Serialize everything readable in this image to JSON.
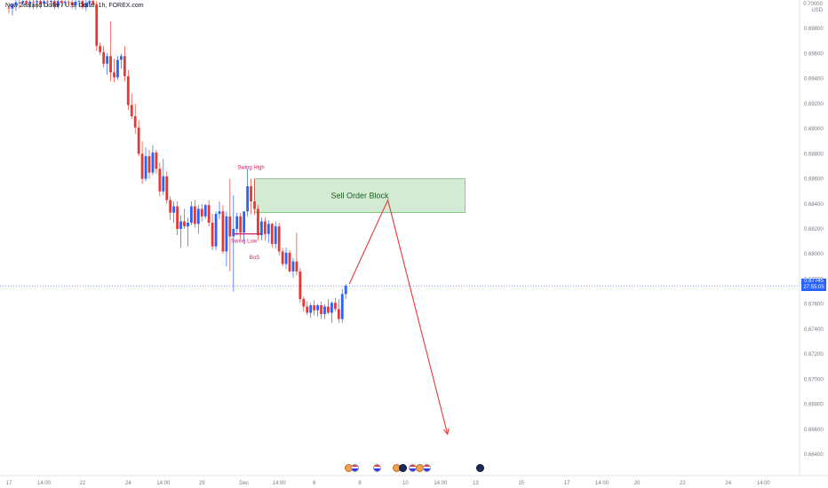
{
  "header": {
    "symbol_text": "New Zealand Dollar / U.S. Dollar, 1h, FOREX.com",
    "currency": "USD",
    "top_label": "0.70000"
  },
  "price_badge": {
    "price": "0.67745",
    "countdown": "27:55:05"
  },
  "colors": {
    "up": "#2962ff",
    "down": "#e53935",
    "arrow": "#e53935",
    "order_block_fill": "#c8e6c9",
    "order_block_stroke": "#4caf50",
    "annotation": "#d81b60",
    "axis_text": "#787b86"
  },
  "chart_data": {
    "type": "candlestick",
    "ylim": [
      0.664,
      0.7
    ],
    "y_ticks": [
      "0.69800",
      "0.69600",
      "0.69400",
      "0.69200",
      "0.69000",
      "0.68800",
      "0.68600",
      "0.68400",
      "0.68200",
      "0.68000",
      "0.67800",
      "0.67600",
      "0.67400",
      "0.67200",
      "0.67000",
      "0.66800",
      "0.66600",
      "0.66400"
    ],
    "x_ticks": [
      {
        "label": "17",
        "i": 0
      },
      {
        "label": "14:00",
        "i": 10
      },
      {
        "label": "22",
        "i": 21
      },
      {
        "label": "24",
        "i": 34
      },
      {
        "label": "14:00",
        "i": 44
      },
      {
        "label": "29",
        "i": 55
      },
      {
        "label": "Dec",
        "i": 67
      },
      {
        "label": "14:00",
        "i": 77
      },
      {
        "label": "6",
        "i": 87
      },
      {
        "label": "8",
        "i": 100
      },
      {
        "label": "10",
        "i": 113
      },
      {
        "label": "14:00",
        "i": 123
      },
      {
        "label": "13",
        "i": 133
      },
      {
        "label": "15",
        "i": 146
      },
      {
        "label": "17",
        "i": 159
      },
      {
        "label": "14:00",
        "i": 169
      },
      {
        "label": "20",
        "i": 179
      },
      {
        "label": "22",
        "i": 192
      },
      {
        "label": "24",
        "i": 205
      },
      {
        "label": "14:00",
        "i": 215
      }
    ],
    "candles": [
      [
        0.69968,
        0.69988,
        0.69922,
        0.6996
      ],
      [
        0.6996,
        0.70004,
        0.69905,
        0.6999
      ],
      [
        0.6999,
        0.7003,
        0.6994,
        0.7001
      ],
      [
        0.7001,
        0.7003,
        0.6996,
        0.70005
      ],
      [
        0.70005,
        0.7003,
        0.6998,
        0.7002
      ],
      [
        0.7002,
        0.7003,
        0.69975,
        0.7
      ],
      [
        0.7,
        0.7003,
        0.69965,
        0.70015
      ],
      [
        0.70015,
        0.7003,
        0.69955,
        0.7001
      ],
      [
        0.7001,
        0.7003,
        0.6996,
        0.7002
      ],
      [
        0.7002,
        0.7003,
        0.69965,
        0.7
      ],
      [
        0.7,
        0.7003,
        0.69975,
        0.70018
      ],
      [
        0.70018,
        0.7003,
        0.6997,
        0.70012
      ],
      [
        0.70012,
        0.7003,
        0.6997,
        0.7002
      ],
      [
        0.7002,
        0.7003,
        0.69955,
        0.6998
      ],
      [
        0.6998,
        0.7003,
        0.6996,
        0.7002
      ],
      [
        0.7002,
        0.7003,
        0.6997,
        0.70005
      ],
      [
        0.70005,
        0.7003,
        0.6998,
        0.70015
      ],
      [
        0.70015,
        0.7003,
        0.6999,
        0.7001
      ],
      [
        0.7001,
        0.7003,
        0.6996,
        0.69985
      ],
      [
        0.69985,
        0.7003,
        0.6995,
        0.70015
      ],
      [
        0.70015,
        0.7003,
        0.69975,
        0.7002
      ],
      [
        0.7002,
        0.7003,
        0.69955,
        0.6997
      ],
      [
        0.6997,
        0.7003,
        0.6994,
        0.70005
      ],
      [
        0.70005,
        0.7003,
        0.6999,
        0.7002
      ],
      [
        0.7002,
        0.7003,
        0.6999,
        0.69995
      ],
      [
        0.69995,
        0.7002,
        0.6962,
        0.69662
      ],
      [
        0.69662,
        0.6969,
        0.6959,
        0.69612
      ],
      [
        0.69612,
        0.6966,
        0.6949,
        0.6952
      ],
      [
        0.6952,
        0.69605,
        0.6943,
        0.6958
      ],
      [
        0.6958,
        0.6986,
        0.6938,
        0.6945
      ],
      [
        0.6945,
        0.6956,
        0.6937,
        0.6941
      ],
      [
        0.6941,
        0.6958,
        0.6939,
        0.6955
      ],
      [
        0.6955,
        0.696,
        0.6948,
        0.6958
      ],
      [
        0.6958,
        0.6966,
        0.6938,
        0.6942
      ],
      [
        0.6942,
        0.6947,
        0.6915,
        0.6919
      ],
      [
        0.6919,
        0.6928,
        0.6908,
        0.691
      ],
      [
        0.691,
        0.692,
        0.6896,
        0.6901
      ],
      [
        0.6901,
        0.6907,
        0.6878,
        0.688
      ],
      [
        0.688,
        0.689,
        0.6856,
        0.686
      ],
      [
        0.686,
        0.6885,
        0.6858,
        0.6878
      ],
      [
        0.6878,
        0.6883,
        0.686,
        0.6865
      ],
      [
        0.6865,
        0.6887,
        0.6863,
        0.6881
      ],
      [
        0.6881,
        0.6883,
        0.6864,
        0.6868
      ],
      [
        0.6868,
        0.6873,
        0.6846,
        0.685
      ],
      [
        0.685,
        0.6876,
        0.6847,
        0.6862
      ],
      [
        0.6862,
        0.6866,
        0.684,
        0.6843
      ],
      [
        0.6843,
        0.6846,
        0.6827,
        0.6833
      ],
      [
        0.6833,
        0.6842,
        0.6825,
        0.6838
      ],
      [
        0.6838,
        0.6842,
        0.6815,
        0.682
      ],
      [
        0.682,
        0.6831,
        0.6805,
        0.6826
      ],
      [
        0.6826,
        0.6836,
        0.682,
        0.6822
      ],
      [
        0.6822,
        0.6829,
        0.6806,
        0.6825
      ],
      [
        0.6825,
        0.6842,
        0.6823,
        0.6838
      ],
      [
        0.6838,
        0.6843,
        0.6821,
        0.6824
      ],
      [
        0.6824,
        0.6839,
        0.6816,
        0.6836
      ],
      [
        0.6836,
        0.684,
        0.6826,
        0.683
      ],
      [
        0.683,
        0.684,
        0.6828,
        0.6839
      ],
      [
        0.6839,
        0.6843,
        0.6822,
        0.6825
      ],
      [
        0.6825,
        0.6832,
        0.6803,
        0.6806
      ],
      [
        0.6806,
        0.6834,
        0.6803,
        0.6832
      ],
      [
        0.6832,
        0.6842,
        0.6828,
        0.6834
      ],
      [
        0.6834,
        0.6839,
        0.68,
        0.6802
      ],
      [
        0.6802,
        0.6834,
        0.679,
        0.683
      ],
      [
        0.683,
        0.686,
        0.6786,
        0.6814
      ],
      [
        0.6814,
        0.6847,
        0.677,
        0.682
      ],
      [
        0.682,
        0.6833,
        0.6815,
        0.683
      ],
      [
        0.683,
        0.6833,
        0.6812,
        0.6817
      ],
      [
        0.6817,
        0.6834,
        0.681,
        0.6834
      ],
      [
        0.6834,
        0.6868,
        0.683,
        0.6854
      ],
      [
        0.6854,
        0.686,
        0.6832,
        0.6842
      ],
      [
        0.6842,
        0.686,
        0.6831,
        0.6836
      ],
      [
        0.6836,
        0.6839,
        0.6811,
        0.6815
      ],
      [
        0.6815,
        0.6829,
        0.6811,
        0.6826
      ],
      [
        0.6826,
        0.6829,
        0.6811,
        0.6816
      ],
      [
        0.6816,
        0.6827,
        0.6809,
        0.6824
      ],
      [
        0.6824,
        0.6825,
        0.6805,
        0.6808
      ],
      [
        0.6808,
        0.6826,
        0.6804,
        0.6822
      ],
      [
        0.6822,
        0.6825,
        0.6799,
        0.6802
      ],
      [
        0.6802,
        0.6805,
        0.679,
        0.6792
      ],
      [
        0.6792,
        0.6805,
        0.6788,
        0.6801
      ],
      [
        0.6801,
        0.6803,
        0.6785,
        0.6786
      ],
      [
        0.6786,
        0.6797,
        0.6781,
        0.6794
      ],
      [
        0.6794,
        0.6817,
        0.6783,
        0.6786
      ],
      [
        0.6786,
        0.6789,
        0.6761,
        0.6764
      ],
      [
        0.6764,
        0.6766,
        0.6754,
        0.6758
      ],
      [
        0.6758,
        0.6762,
        0.6751,
        0.6753
      ],
      [
        0.6753,
        0.6761,
        0.6749,
        0.6759
      ],
      [
        0.6759,
        0.6763,
        0.6751,
        0.6755
      ],
      [
        0.6755,
        0.676,
        0.675,
        0.6759
      ],
      [
        0.6759,
        0.6762,
        0.6748,
        0.6752
      ],
      [
        0.6752,
        0.676,
        0.6748,
        0.6758
      ],
      [
        0.6758,
        0.6764,
        0.6752,
        0.6753
      ],
      [
        0.6753,
        0.6762,
        0.6745,
        0.6761
      ],
      [
        0.6761,
        0.6765,
        0.6754,
        0.6756
      ],
      [
        0.6756,
        0.6764,
        0.6745,
        0.6748
      ],
      [
        0.6748,
        0.6772,
        0.6745,
        0.6768
      ],
      [
        0.6768,
        0.6776,
        0.6764,
        0.67745
      ]
    ],
    "order_block": {
      "label": "Sell Order Block",
      "i_start": 70,
      "i_end": 130,
      "top": 0.686,
      "bottom": 0.6833
    },
    "annotations": [
      {
        "text": "Swing High",
        "i": 69,
        "price": 0.6865,
        "pos": "above"
      },
      {
        "text": "Swing Low",
        "i": 67,
        "price": 0.6816,
        "pos": "below"
      },
      {
        "text": "BoS",
        "i": 70,
        "price": 0.6803,
        "pos": "below"
      }
    ],
    "bos_line": {
      "i_start": 64,
      "i_end": 72,
      "price": 0.6816
    },
    "projection": [
      {
        "i": 97,
        "price": 0.6776
      },
      {
        "i": 108,
        "price": 0.6843
      },
      {
        "i": 125,
        "price": 0.6656
      }
    ],
    "last_price": 0.67745
  }
}
